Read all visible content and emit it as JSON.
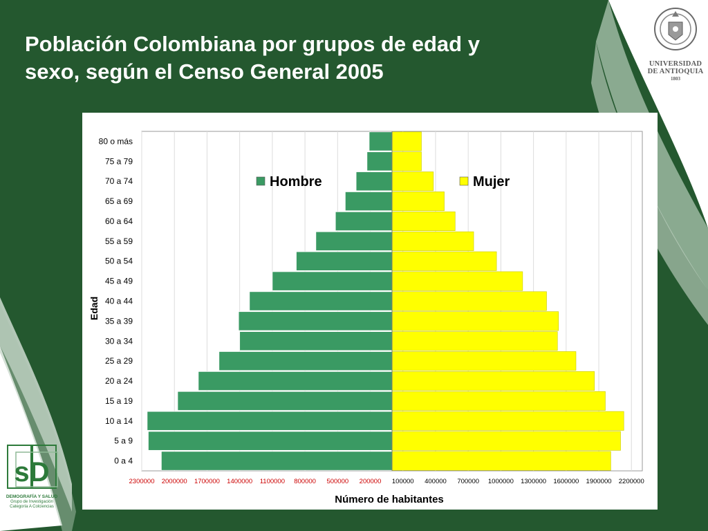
{
  "slide": {
    "title_line1": "Población Colombiana por grupos de edad y",
    "title_line2": "sexo, según el Censo General 2005",
    "background_color": "#24582f"
  },
  "logos": {
    "university_line1": "UNIVERSIDAD",
    "university_line2": "DE ANTIOQUIA",
    "university_year": "1803",
    "group_line1": "DEMOGRAFÍA Y SALUD",
    "group_line2": "Grupo de Investigación",
    "group_line3": "Categoría A Colciencias",
    "group_mark": "sD"
  },
  "chart_data": {
    "type": "bar",
    "orientation": "horizontal",
    "subtype": "population-pyramid",
    "ylabel": "Edad",
    "xlabel": "Número de habitantes",
    "categories": [
      "0 a 4",
      "5 a 9",
      "10 a 14",
      "15 a 19",
      "20 a 24",
      "25 a 29",
      "30 a 34",
      "35 a 39",
      "40 a 44",
      "45 a 49",
      "50 a 54",
      "55 a 59",
      "60 a 64",
      "65 a 69",
      "70 a 74",
      "75 a 79",
      "80  o más"
    ],
    "series": [
      {
        "name": "Hombre",
        "color": "#3a9a63",
        "side": "left",
        "values": [
          2120000,
          2240000,
          2250000,
          1970000,
          1780000,
          1590000,
          1400000,
          1410000,
          1310000,
          1100000,
          880000,
          700000,
          520000,
          430000,
          330000,
          230000,
          210000
        ]
      },
      {
        "name": "Mujer",
        "color": "#ffff00",
        "side": "right",
        "values": [
          2010000,
          2100000,
          2130000,
          1960000,
          1860000,
          1690000,
          1520000,
          1530000,
          1420000,
          1200000,
          960000,
          750000,
          580000,
          480000,
          380000,
          270000,
          270000
        ]
      }
    ],
    "xlim_left": [
      0,
      2300000
    ],
    "xlim_right": [
      0,
      2300000
    ],
    "left_ticks": [
      "2300000",
      "2000000",
      "1700000",
      "1400000",
      "1100000",
      "800000",
      "500000",
      "200000"
    ],
    "right_ticks": [
      "100000",
      "400000",
      "700000",
      "1000000",
      "1300000",
      "1600000",
      "1900000",
      "2200000"
    ],
    "left_tick_color": "#cc0000",
    "right_tick_color": "#000000",
    "grid": "vertical",
    "legend_placement": "top"
  }
}
